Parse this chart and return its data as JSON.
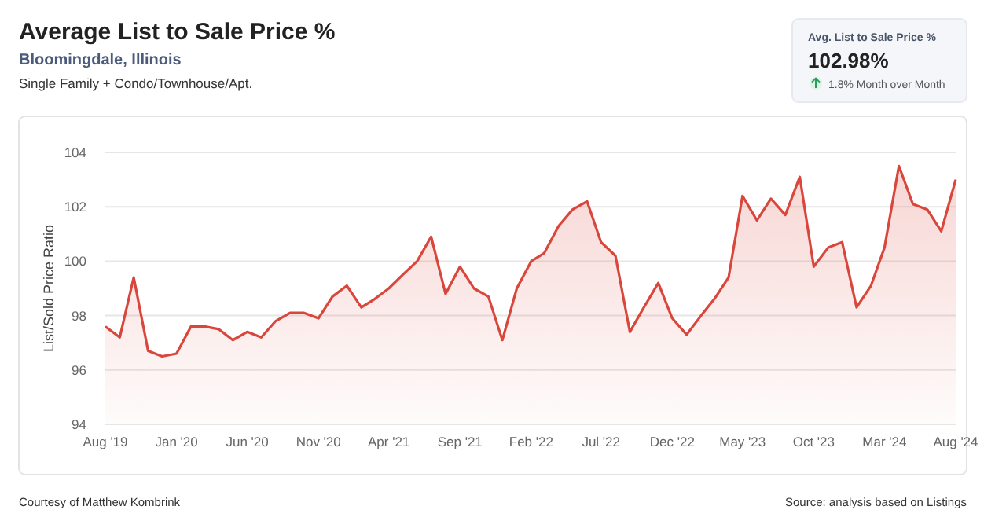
{
  "chart_data": {
    "type": "area",
    "title": "Average List to Sale Price %",
    "subtitle": "Bloomingdale, Illinois",
    "ylabel": "List/Sold Price Ratio",
    "annotations": [
      "Single Family + Condo/Townhouse/Apt.",
      "Avg. List to Sale Price %",
      "102.98%",
      "1.8% Month over Month",
      "Courtesy of Matthew Kombrink",
      "Source: analysis based on Listings"
    ],
    "x": [
      "2019-08",
      "2019-09",
      "2019-10",
      "2019-11",
      "2019-12",
      "2020-01",
      "2020-02",
      "2020-03",
      "2020-04",
      "2020-05",
      "2020-06",
      "2020-07",
      "2020-08",
      "2020-09",
      "2020-10",
      "2020-11",
      "2020-12",
      "2021-01",
      "2021-02",
      "2021-03",
      "2021-04",
      "2021-05",
      "2021-06",
      "2021-07",
      "2021-08",
      "2021-09",
      "2021-10",
      "2021-11",
      "2021-12",
      "2022-01",
      "2022-02",
      "2022-03",
      "2022-04",
      "2022-05",
      "2022-06",
      "2022-07",
      "2022-08",
      "2022-09",
      "2022-10",
      "2022-11",
      "2022-12",
      "2023-01",
      "2023-02",
      "2023-03",
      "2023-04",
      "2023-05",
      "2023-06",
      "2023-07",
      "2023-08",
      "2023-09",
      "2023-10",
      "2023-11",
      "2023-12",
      "2024-01",
      "2024-02",
      "2024-03",
      "2024-04",
      "2024-05",
      "2024-06",
      "2024-07",
      "2024-08"
    ],
    "series": [
      {
        "color": "#d9463b",
        "values": [
          97.6,
          97.2,
          99.4,
          96.7,
          96.5,
          96.6,
          97.6,
          97.6,
          97.5,
          97.1,
          97.4,
          97.2,
          97.8,
          98.1,
          98.1,
          97.9,
          98.7,
          99.1,
          98.3,
          98.6,
          99.0,
          99.5,
          100.0,
          100.9,
          98.8,
          99.8,
          99.0,
          98.7,
          97.1,
          99.0,
          100.0,
          100.3,
          101.3,
          101.9,
          102.2,
          100.7,
          100.2,
          97.4,
          98.3,
          99.2,
          97.9,
          97.3,
          98.0,
          98.6,
          99.4,
          102.4,
          101.5,
          102.3,
          101.7,
          103.1,
          99.8,
          100.5,
          100.7,
          98.3,
          99.1,
          100.5,
          103.5,
          102.1,
          101.9,
          101.1,
          103.0
        ]
      }
    ],
    "xlim": [
      "2019-08",
      "2024-08"
    ],
    "xticks": [
      {
        "value": "2019-08",
        "label": "Aug '19"
      },
      {
        "value": "2020-01",
        "label": "Jan '20"
      },
      {
        "value": "2020-06",
        "label": "Jun '20"
      },
      {
        "value": "2020-11",
        "label": "Nov '20"
      },
      {
        "value": "2021-04",
        "label": "Apr '21"
      },
      {
        "value": "2021-09",
        "label": "Sep '21"
      },
      {
        "value": "2022-02",
        "label": "Feb '22"
      },
      {
        "value": "2022-07",
        "label": "Jul '22"
      },
      {
        "value": "2022-12",
        "label": "Dec '22"
      },
      {
        "value": "2023-05",
        "label": "May '23"
      },
      {
        "value": "2023-10",
        "label": "Oct '23"
      },
      {
        "value": "2024-03",
        "label": "Mar '24"
      },
      {
        "value": "2024-08",
        "label": "Aug '24"
      }
    ],
    "ylim": [
      94,
      104
    ],
    "yticks": [
      94,
      96,
      98,
      100,
      102,
      104
    ],
    "grid": "y",
    "marker": "none",
    "line_style": "solid"
  }
}
